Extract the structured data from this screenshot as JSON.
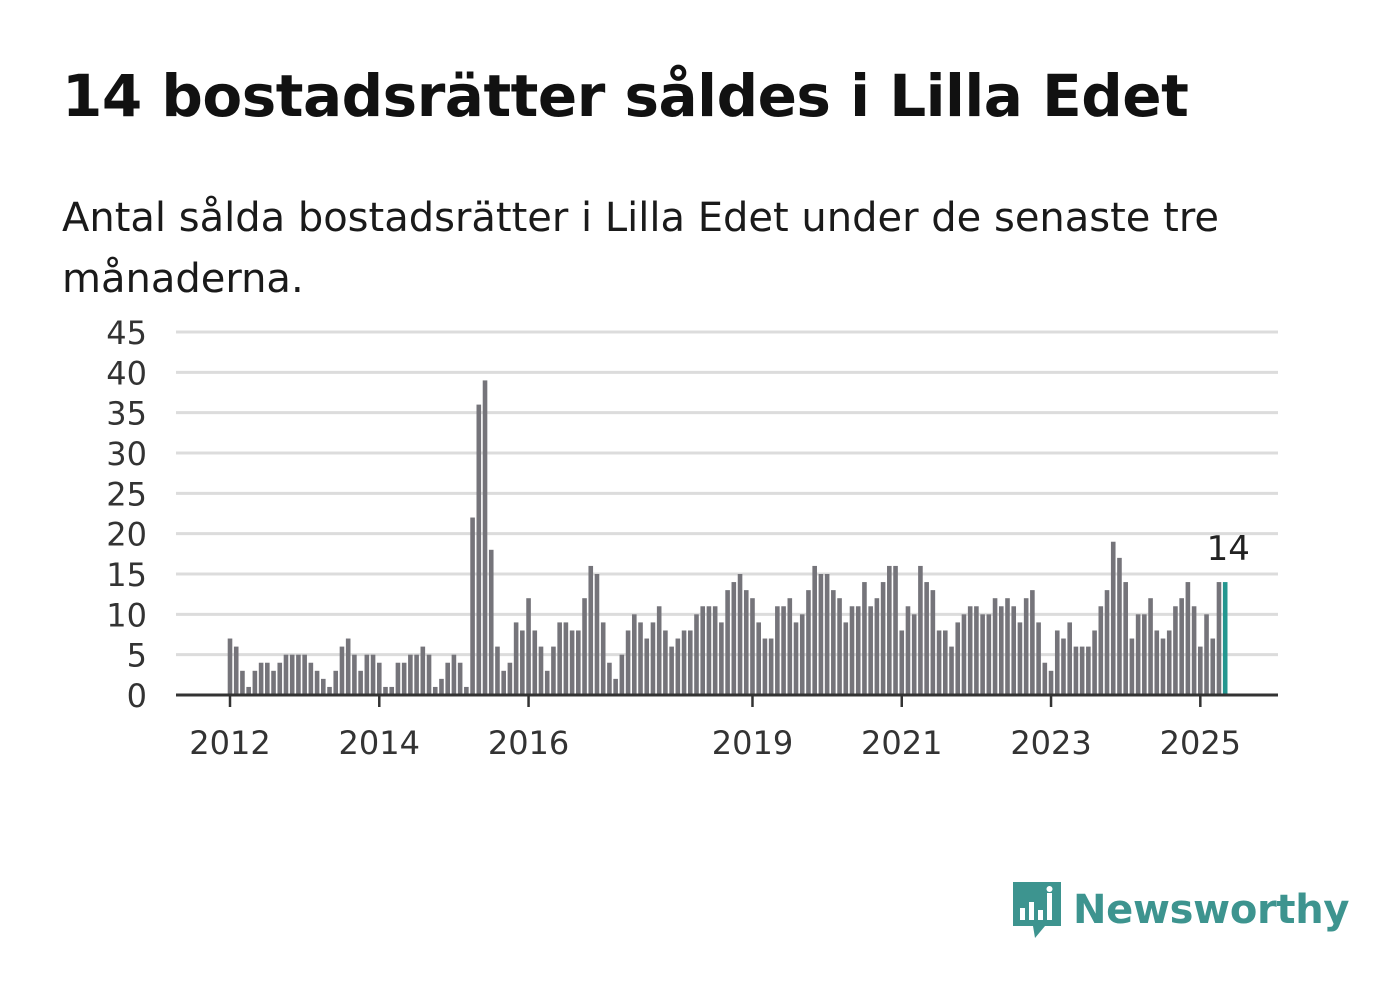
{
  "title": "14 bostadsrätter såldes i Lilla Edet",
  "subtitle": "Antal sålda bostadsrätter i Lilla Edet under de senaste tre månaderna.",
  "brand": {
    "name": "Newsworthy",
    "icon": "newsworthy-logo-icon",
    "color": "#3d948f"
  },
  "chart_data": {
    "type": "bar",
    "title": "14 bostadsrätter såldes i Lilla Edet",
    "xlabel": "",
    "ylabel": "",
    "ylim": [
      0,
      45
    ],
    "yticks": [
      0,
      5,
      10,
      15,
      20,
      25,
      30,
      35,
      40,
      45
    ],
    "xtick_labels": [
      {
        "label": "2012",
        "index": 0
      },
      {
        "label": "2014",
        "index": 24
      },
      {
        "label": "2016",
        "index": 48
      },
      {
        "label": "2019",
        "index": 84
      },
      {
        "label": "2021",
        "index": 108
      },
      {
        "label": "2023",
        "index": 132
      },
      {
        "label": "2025",
        "index": 156
      }
    ],
    "grid": true,
    "bar_color": "#75747a",
    "highlight_color": "#24968f",
    "highlight_index": 160,
    "highlight_label": "14",
    "values": [
      7,
      6,
      3,
      1,
      3,
      4,
      4,
      3,
      4,
      5,
      5,
      5,
      5,
      4,
      3,
      2,
      1,
      3,
      6,
      7,
      5,
      3,
      5,
      5,
      4,
      1,
      1,
      4,
      4,
      5,
      5,
      6,
      5,
      1,
      2,
      4,
      5,
      4,
      1,
      22,
      36,
      39,
      18,
      6,
      3,
      4,
      9,
      8,
      12,
      8,
      6,
      3,
      6,
      9,
      9,
      8,
      8,
      12,
      16,
      15,
      9,
      4,
      2,
      5,
      8,
      10,
      9,
      7,
      9,
      11,
      8,
      6,
      7,
      8,
      8,
      10,
      11,
      11,
      11,
      9,
      13,
      14,
      15,
      13,
      12,
      9,
      7,
      7,
      11,
      11,
      12,
      9,
      10,
      13,
      16,
      15,
      15,
      13,
      12,
      9,
      11,
      11,
      14,
      11,
      12,
      14,
      16,
      16,
      8,
      11,
      10,
      16,
      14,
      13,
      8,
      8,
      6,
      9,
      10,
      11,
      11,
      10,
      10,
      12,
      11,
      12,
      11,
      9,
      12,
      13,
      9,
      4,
      3,
      8,
      7,
      9,
      6,
      6,
      6,
      8,
      11,
      13,
      19,
      17,
      14,
      7,
      10,
      10,
      12,
      8,
      7,
      8,
      11,
      12,
      14,
      11,
      6,
      10,
      7,
      14,
      14
    ]
  }
}
